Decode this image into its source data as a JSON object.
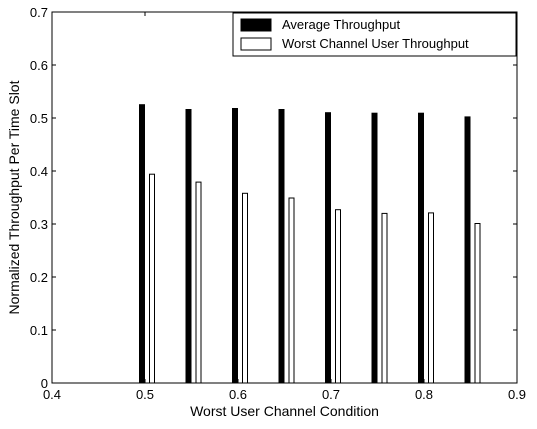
{
  "chart_data": {
    "type": "bar",
    "xlabel": "Worst User Channel Condition",
    "ylabel": "Normalized Throughput Per Time Slot",
    "xlim": [
      0.4,
      0.9
    ],
    "ylim": [
      0,
      0.7
    ],
    "xticks": [
      "0.4",
      "0.5",
      "0.6",
      "0.7",
      "0.8",
      "0.9"
    ],
    "yticks": [
      "0",
      "0.1",
      "0.2",
      "0.3",
      "0.4",
      "0.5",
      "0.6",
      "0.7"
    ],
    "x": [
      0.5,
      0.55,
      0.6,
      0.65,
      0.7,
      0.75,
      0.8,
      0.85
    ],
    "series": [
      {
        "name": "Average Throughput",
        "color": "#000000",
        "values": [
          0.525,
          0.516,
          0.518,
          0.516,
          0.51,
          0.509,
          0.509,
          0.502
        ]
      },
      {
        "name": "Worst Channel User Throughput",
        "color": "#ffffff",
        "values": [
          0.394,
          0.379,
          0.358,
          0.349,
          0.327,
          0.32,
          0.321,
          0.301
        ]
      }
    ],
    "legend_position": "top-right",
    "grid": false
  }
}
